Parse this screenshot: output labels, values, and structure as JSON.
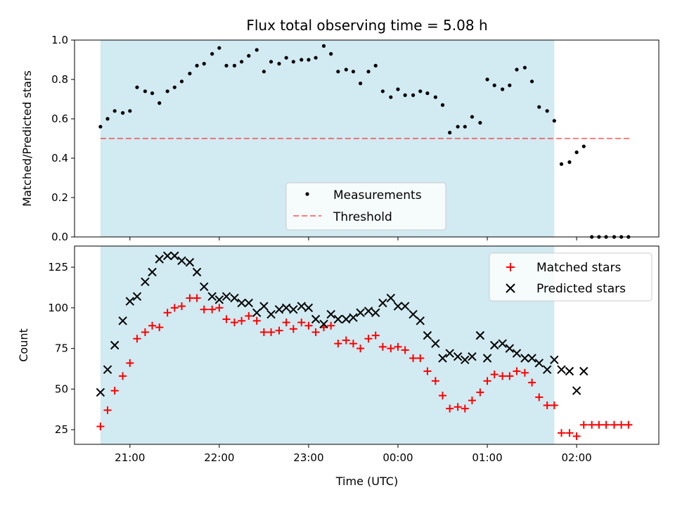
{
  "title": "Flux total observing time = 5.08 h",
  "xlabel": "Time (UTC)",
  "colors": {
    "shade": "#add8e6",
    "threshold": "#ff0000",
    "matched": "#ff0000",
    "predicted": "#000000",
    "measurements": "#000000"
  },
  "chart_data": [
    {
      "type": "scatter",
      "ylabel": "Matched/Predicted stars",
      "ylim": [
        0,
        1.0
      ],
      "yticks": [
        0.0,
        0.2,
        0.4,
        0.6,
        0.8,
        1.0
      ],
      "shaded_x": [
        20.67,
        25.75
      ],
      "threshold": 0.5,
      "threshold_x": [
        20.67,
        26.6
      ],
      "legend": {
        "position": "lower-center",
        "entries": [
          "Measurements",
          "Threshold"
        ]
      },
      "series": [
        {
          "name": "Measurements",
          "x": [
            20.67,
            20.75,
            20.83,
            20.92,
            21.0,
            21.08,
            21.17,
            21.25,
            21.33,
            21.42,
            21.5,
            21.58,
            21.67,
            21.75,
            21.83,
            21.92,
            22.0,
            22.08,
            22.17,
            22.25,
            22.33,
            22.42,
            22.5,
            22.58,
            22.67,
            22.75,
            22.83,
            22.92,
            23.0,
            23.08,
            23.17,
            23.25,
            23.33,
            23.42,
            23.5,
            23.58,
            23.67,
            23.75,
            23.83,
            23.92,
            24.0,
            24.08,
            24.17,
            24.25,
            24.33,
            24.42,
            24.5,
            24.58,
            24.67,
            24.75,
            24.83,
            24.92,
            25.0,
            25.08,
            25.17,
            25.25,
            25.33,
            25.42,
            25.5,
            25.58,
            25.67,
            25.75,
            25.83,
            25.92,
            26.0,
            26.08,
            26.17,
            26.25,
            26.33,
            26.42,
            26.5,
            26.58
          ],
          "y": [
            0.56,
            0.6,
            0.64,
            0.63,
            0.64,
            0.76,
            0.74,
            0.73,
            0.68,
            0.74,
            0.76,
            0.79,
            0.83,
            0.87,
            0.88,
            0.93,
            0.96,
            0.87,
            0.87,
            0.89,
            0.92,
            0.95,
            0.84,
            0.89,
            0.88,
            0.91,
            0.89,
            0.9,
            0.9,
            0.91,
            0.97,
            0.93,
            0.84,
            0.85,
            0.84,
            0.78,
            0.84,
            0.87,
            0.74,
            0.71,
            0.75,
            0.72,
            0.72,
            0.74,
            0.73,
            0.71,
            0.67,
            0.53,
            0.56,
            0.56,
            0.61,
            0.58,
            0.8,
            0.77,
            0.75,
            0.77,
            0.85,
            0.86,
            0.79,
            0.66,
            0.64,
            0.59,
            0.37,
            0.38,
            0.43,
            0.46,
            0.0,
            0.0,
            0.0,
            0.0,
            0.0,
            0.0
          ]
        }
      ]
    },
    {
      "type": "scatter",
      "ylabel": "Count",
      "ylim": [
        16,
        138
      ],
      "yticks": [
        25,
        50,
        75,
        100,
        125
      ],
      "shaded_x": [
        20.67,
        25.75
      ],
      "legend": {
        "position": "top-right",
        "entries": [
          "Matched stars",
          "Predicted stars"
        ]
      },
      "x": [
        20.67,
        20.75,
        20.83,
        20.92,
        21.0,
        21.08,
        21.17,
        21.25,
        21.33,
        21.42,
        21.5,
        21.58,
        21.67,
        21.75,
        21.83,
        21.92,
        22.0,
        22.08,
        22.17,
        22.25,
        22.33,
        22.42,
        22.5,
        22.58,
        22.67,
        22.75,
        22.83,
        22.92,
        23.0,
        23.08,
        23.17,
        23.25,
        23.33,
        23.42,
        23.5,
        23.58,
        23.67,
        23.75,
        23.83,
        23.92,
        24.0,
        24.08,
        24.17,
        24.25,
        24.33,
        24.42,
        24.5,
        24.58,
        24.67,
        24.75,
        24.83,
        24.92,
        25.0,
        25.08,
        25.17,
        25.25,
        25.33,
        25.42,
        25.5,
        25.58,
        25.67,
        25.75,
        25.83,
        25.92,
        26.0,
        26.08,
        26.17,
        26.25,
        26.33,
        26.42,
        26.5,
        26.58
      ],
      "series": [
        {
          "name": "Matched stars",
          "values": [
            27,
            37,
            49,
            58,
            66,
            81,
            85,
            89,
            88,
            97,
            100,
            101,
            106,
            106,
            99,
            99,
            100,
            93,
            91,
            92,
            95,
            92,
            85,
            85,
            86,
            91,
            87,
            91,
            89,
            85,
            88,
            89,
            78,
            80,
            78,
            75,
            81,
            83,
            76,
            75,
            76,
            74,
            69,
            69,
            61,
            55,
            46,
            38,
            39,
            38,
            43,
            48,
            55,
            59,
            58,
            58,
            61,
            60,
            54,
            45,
            40,
            40,
            23,
            23,
            21,
            28,
            28,
            28,
            28,
            28,
            28,
            28
          ]
        },
        {
          "name": "Predicted stars",
          "values": [
            48,
            62,
            77,
            92,
            104,
            107,
            116,
            122,
            130,
            132,
            132,
            129,
            128,
            122,
            113,
            107,
            105,
            107,
            106,
            103,
            103,
            97,
            101,
            96,
            99,
            100,
            99,
            101,
            100,
            93,
            90,
            96,
            93,
            93,
            94,
            97,
            98,
            97,
            103,
            106,
            101,
            101,
            96,
            92,
            83,
            78,
            69,
            72,
            70,
            68,
            70,
            83,
            69,
            77,
            78,
            75,
            72,
            69,
            69,
            66,
            62,
            68,
            62,
            61,
            49,
            61,
            null,
            null,
            null,
            null,
            null,
            null
          ]
        }
      ]
    }
  ],
  "xticks": [
    {
      "v": 21,
      "label": "21:00"
    },
    {
      "v": 22,
      "label": "22:00"
    },
    {
      "v": 23,
      "label": "23:00"
    },
    {
      "v": 24,
      "label": "00:00"
    },
    {
      "v": 25,
      "label": "01:00"
    },
    {
      "v": 26,
      "label": "02:00"
    }
  ],
  "xlim": [
    20.38,
    26.92
  ]
}
